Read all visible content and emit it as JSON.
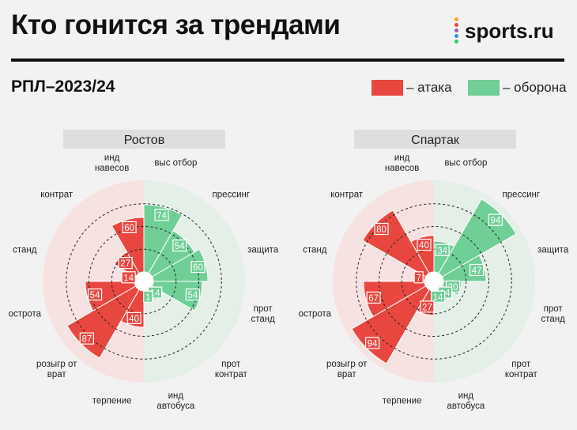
{
  "header": {
    "title": "Кто гонится за трендами",
    "subtitle": "РПЛ–2023/24",
    "logo_text": "sports.ru"
  },
  "legend": [
    {
      "label": "– атака",
      "color": "#e8473f"
    },
    {
      "label": "– оборона",
      "color": "#6fcf97"
    }
  ],
  "colors": {
    "attack": "#e8473f",
    "defense": "#6fcf97",
    "attack_bg": "#f6e3e1",
    "defense_bg": "#e4efe7",
    "logo_dots": [
      "#f5a623",
      "#e8473f",
      "#9b59b6",
      "#3498db",
      "#2ecc71"
    ]
  },
  "chart_data": [
    {
      "type": "polar-bar",
      "team": "Ростов",
      "categories": [
        "выс отбор",
        "прессинг",
        "защита",
        "прот стand",
        "прот контрат",
        "инд автобуса",
        "терпение",
        "розыгр от врат",
        "острота",
        "станд",
        "контрат",
        "инд навесов"
      ],
      "category_labels": [
        "выс отбор",
        "прессинг",
        "защита",
        "прот\nстанд",
        "прот\nконтрат",
        "инд\nавтобуса",
        "терпение",
        "розыгр от\nврат",
        "острота",
        "станд",
        "контрат",
        "инд\nнавесов"
      ],
      "groups": [
        "оборона",
        "оборона",
        "оборона",
        "оборона",
        "оборона",
        "оборона",
        "атака",
        "атака",
        "атака",
        "атака",
        "атака",
        "атака"
      ],
      "values": [
        74,
        54,
        60,
        54,
        14,
        1,
        40,
        87,
        54,
        14,
        27,
        60
      ],
      "rlim": [
        0,
        100
      ]
    },
    {
      "type": "polar-bar",
      "team": "Спартак",
      "categories": [
        "выс отбор",
        "прессинг",
        "защита",
        "прот стand",
        "прот контрат",
        "инд автобуса",
        "терпение",
        "розыгр от врат",
        "острота",
        "станд",
        "контрат",
        "инд навесов"
      ],
      "category_labels": [
        "выс отбор",
        "прессинг",
        "защита",
        "прот\nстанд",
        "прот\nконтрат",
        "инд\nавтобуса",
        "терпение",
        "розыгр от\nврат",
        "острота",
        "станд",
        "контрат",
        "инд\nнавесов"
      ],
      "groups": [
        "оборона",
        "оборона",
        "оборона",
        "оборона",
        "оборона",
        "оборона",
        "атака",
        "атака",
        "атака",
        "атака",
        "атака",
        "атака"
      ],
      "values": [
        34,
        94,
        47,
        20,
        14,
        14,
        27,
        94,
        67,
        7,
        80,
        40
      ],
      "rlim": [
        0,
        100
      ]
    }
  ]
}
